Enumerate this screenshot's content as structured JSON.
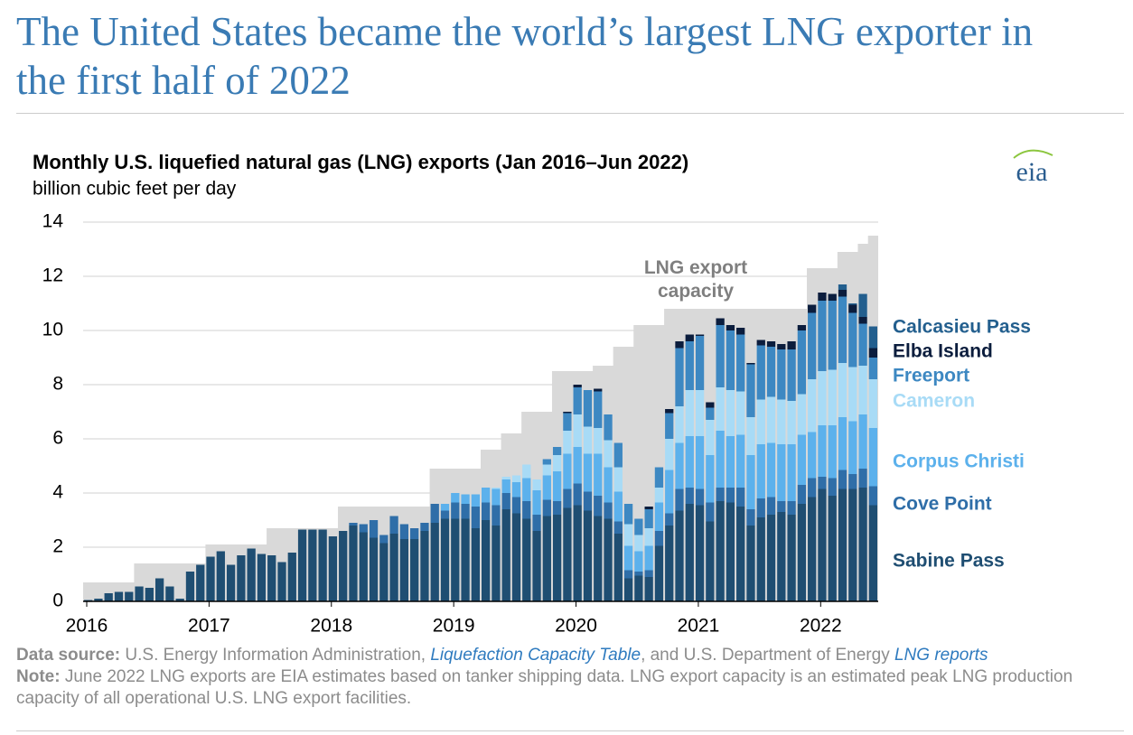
{
  "header": {
    "title": "The United States became the world’s largest LNG exporter in the first half of 2022",
    "logo": "eia"
  },
  "chart_data": {
    "type": "stacked-bar",
    "title": "Monthly U.S. liquefied natural gas (LNG) exports (Jan 2016–Jun 2022)",
    "subtitle": "billion cubic feet per day",
    "ylim": [
      0,
      14
    ],
    "yticks": [
      0,
      2,
      4,
      6,
      8,
      10,
      12,
      14
    ],
    "grid": true,
    "categories": [
      "2016",
      null,
      null,
      null,
      null,
      null,
      null,
      null,
      null,
      null,
      null,
      null,
      "2017",
      null,
      null,
      null,
      null,
      null,
      null,
      null,
      null,
      null,
      null,
      null,
      "2018",
      null,
      null,
      null,
      null,
      null,
      null,
      null,
      null,
      null,
      null,
      null,
      "2019",
      null,
      null,
      null,
      null,
      null,
      null,
      null,
      null,
      null,
      null,
      null,
      "2020",
      null,
      null,
      null,
      null,
      null,
      null,
      null,
      null,
      null,
      null,
      null,
      "2021",
      null,
      null,
      null,
      null,
      null,
      null,
      null,
      null,
      null,
      null,
      null,
      "2022",
      null,
      null,
      null,
      null,
      null
    ],
    "capacity": {
      "name": "LNG export capacity",
      "color": "#d9d9d9",
      "values": [
        0.7,
        0.7,
        0.7,
        0.7,
        0.7,
        1.4,
        1.4,
        1.4,
        1.4,
        1.4,
        1.4,
        1.4,
        2.1,
        2.1,
        2.1,
        2.1,
        2.1,
        2.1,
        2.7,
        2.7,
        2.7,
        2.7,
        2.7,
        2.7,
        2.7,
        3.5,
        3.5,
        3.5,
        3.5,
        3.5,
        3.5,
        3.5,
        3.5,
        3.5,
        4.9,
        4.9,
        4.9,
        4.9,
        4.9,
        5.6,
        5.6,
        6.2,
        6.2,
        7.0,
        7.0,
        7.0,
        8.5,
        8.5,
        8.5,
        8.5,
        8.7,
        8.7,
        9.4,
        9.4,
        10.2,
        10.2,
        10.2,
        10.8,
        10.8,
        10.8,
        10.8,
        10.8,
        10.8,
        10.8,
        10.8,
        10.8,
        10.8,
        10.8,
        10.8,
        10.8,
        10.8,
        12.3,
        12.3,
        12.3,
        12.9,
        12.9,
        13.2,
        13.5
      ]
    },
    "series": [
      {
        "name": "Sabine Pass",
        "color": "#1f4e72",
        "values": [
          0.05,
          0.1,
          0.3,
          0.35,
          0.35,
          0.55,
          0.5,
          0.85,
          0.55,
          0.1,
          1.1,
          1.35,
          1.65,
          1.85,
          1.35,
          1.7,
          1.95,
          1.75,
          1.7,
          1.45,
          1.8,
          2.65,
          2.65,
          2.65,
          2.4,
          2.6,
          2.8,
          2.55,
          2.35,
          2.15,
          2.5,
          2.3,
          2.3,
          2.6,
          2.9,
          3.05,
          3.05,
          3.05,
          2.7,
          3.0,
          2.8,
          3.4,
          3.25,
          3.05,
          2.6,
          3.15,
          3.2,
          3.45,
          3.55,
          3.35,
          3.15,
          3.05,
          2.5,
          0.85,
          0.95,
          0.9,
          2.05,
          2.8,
          3.35,
          3.6,
          3.55,
          2.95,
          3.7,
          3.65,
          3.5,
          2.8,
          3.1,
          3.2,
          3.3,
          3.2,
          3.6,
          3.85,
          4.15,
          3.9,
          4.15,
          4.15,
          4.2,
          3.55
        ]
      },
      {
        "name": "Cove Point",
        "color": "#2f6ea8",
        "values": [
          0,
          0,
          0,
          0,
          0,
          0,
          0,
          0,
          0,
          0,
          0,
          0,
          0,
          0,
          0,
          0,
          0,
          0,
          0,
          0,
          0,
          0,
          0,
          0,
          0,
          0,
          0.1,
          0.3,
          0.65,
          0.3,
          0.65,
          0.55,
          0.4,
          0.3,
          0.7,
          0.3,
          0.6,
          0.55,
          0.8,
          0.65,
          0.75,
          0.6,
          0.6,
          0.65,
          0.6,
          0.6,
          0.5,
          0.7,
          0.8,
          0.7,
          0.75,
          0.6,
          0.45,
          0.3,
          0.15,
          0.25,
          0.55,
          0.45,
          0.8,
          0.6,
          0.6,
          0.7,
          0.5,
          0.55,
          0.7,
          0.6,
          0.7,
          0.65,
          0.4,
          0.5,
          0.7,
          0.7,
          0.45,
          0.65,
          0.7,
          0.55,
          0.7,
          0.7
        ]
      },
      {
        "name": "Corpus Christi",
        "color": "#5cb1ec",
        "values": [
          0,
          0,
          0,
          0,
          0,
          0,
          0,
          0,
          0,
          0,
          0,
          0,
          0,
          0,
          0,
          0,
          0,
          0,
          0,
          0,
          0,
          0,
          0,
          0,
          0,
          0,
          0,
          0,
          0,
          0,
          0,
          0,
          0,
          0,
          0,
          0.25,
          0.35,
          0.35,
          0.45,
          0.55,
          0.6,
          0.5,
          0.55,
          0.85,
          0.9,
          0.9,
          1.1,
          1.3,
          1.35,
          1.4,
          1.55,
          1.3,
          1.1,
          0.9,
          0.75,
          0.9,
          1.05,
          1.6,
          1.7,
          1.9,
          1.95,
          1.75,
          2.1,
          1.9,
          1.95,
          2.0,
          2.0,
          2.0,
          2.1,
          2.1,
          1.85,
          1.7,
          1.9,
          1.95,
          1.95,
          1.95,
          2.0,
          2.15
        ]
      },
      {
        "name": "Cameron",
        "color": "#a8dbf6",
        "values": [
          0,
          0,
          0,
          0,
          0,
          0,
          0,
          0,
          0,
          0,
          0,
          0,
          0,
          0,
          0,
          0,
          0,
          0,
          0,
          0,
          0,
          0,
          0,
          0,
          0,
          0,
          0,
          0,
          0,
          0,
          0,
          0,
          0,
          0,
          0,
          0,
          0,
          0,
          0,
          0,
          0.05,
          0.1,
          0.25,
          0.5,
          0.4,
          0.4,
          0.6,
          0.85,
          1.2,
          1.0,
          0.95,
          1.0,
          0.9,
          0.8,
          0.6,
          0.65,
          0.55,
          1.15,
          1.35,
          1.7,
          1.7,
          1.3,
          1.6,
          1.7,
          1.6,
          1.4,
          1.65,
          1.7,
          1.65,
          1.6,
          1.5,
          1.95,
          2.0,
          2.05,
          2.0,
          2.0,
          1.8,
          1.8
        ]
      },
      {
        "name": "Freeport",
        "color": "#3d88c2",
        "values": [
          0,
          0,
          0,
          0,
          0,
          0,
          0,
          0,
          0,
          0,
          0,
          0,
          0,
          0,
          0,
          0,
          0,
          0,
          0,
          0,
          0,
          0,
          0,
          0,
          0,
          0,
          0,
          0,
          0,
          0,
          0,
          0,
          0,
          0,
          0,
          0,
          0,
          0,
          0,
          0,
          0,
          0,
          0,
          0,
          0,
          0.2,
          0.3,
          0.65,
          1.0,
          1.35,
          1.35,
          0.95,
          0.9,
          0.75,
          0.6,
          0.7,
          0.75,
          0.95,
          2.15,
          1.8,
          2.0,
          0.45,
          2.3,
          2.2,
          2.1,
          1.95,
          2.0,
          1.85,
          1.85,
          1.9,
          2.35,
          2.45,
          2.6,
          2.55,
          2.45,
          2.0,
          1.55,
          0.8
        ]
      },
      {
        "name": "Elba Island",
        "color": "#0b1d3d",
        "values": [
          0,
          0,
          0,
          0,
          0,
          0,
          0,
          0,
          0,
          0,
          0,
          0,
          0,
          0,
          0,
          0,
          0,
          0,
          0,
          0,
          0,
          0,
          0,
          0,
          0,
          0,
          0,
          0,
          0,
          0,
          0,
          0,
          0,
          0,
          0,
          0,
          0,
          0,
          0,
          0,
          0,
          0,
          0,
          0,
          0,
          0,
          0,
          0.05,
          0.1,
          0,
          0.1,
          0,
          0,
          0,
          0,
          0.1,
          0,
          0.15,
          0.25,
          0.25,
          0.05,
          0.2,
          0.25,
          0.2,
          0.25,
          0.05,
          0.2,
          0.2,
          0.2,
          0.3,
          0.2,
          0.3,
          0.3,
          0.25,
          0.25,
          0.3,
          0.25,
          0.35
        ]
      },
      {
        "name": "Calcasieu Pass",
        "color": "#235f8e",
        "values": [
          0,
          0,
          0,
          0,
          0,
          0,
          0,
          0,
          0,
          0,
          0,
          0,
          0,
          0,
          0,
          0,
          0,
          0,
          0,
          0,
          0,
          0,
          0,
          0,
          0,
          0,
          0,
          0,
          0,
          0,
          0,
          0,
          0,
          0,
          0,
          0,
          0,
          0,
          0,
          0,
          0,
          0,
          0,
          0,
          0,
          0,
          0,
          0,
          0,
          0,
          0,
          0,
          0,
          0,
          0,
          0,
          0,
          0,
          0,
          0,
          0,
          0,
          0,
          0,
          0,
          0,
          0,
          0,
          0,
          0,
          0,
          0,
          0,
          0,
          0.2,
          0.05,
          0.85,
          0.8
        ]
      }
    ]
  },
  "footer": {
    "source_label": "Data source:",
    "source_text_1": "U.S. Energy Information Administration,",
    "source_link_1": "Liquefaction Capacity Table",
    "source_text_2": ", and U.S. Department of Energy",
    "source_link_2": "LNG reports",
    "note_label": "Note:",
    "note_text": "June 2022 LNG exports are EIA estimates based on tanker shipping data. LNG export capacity is an estimated peak LNG production capacity of all operational U.S. LNG export facilities."
  }
}
